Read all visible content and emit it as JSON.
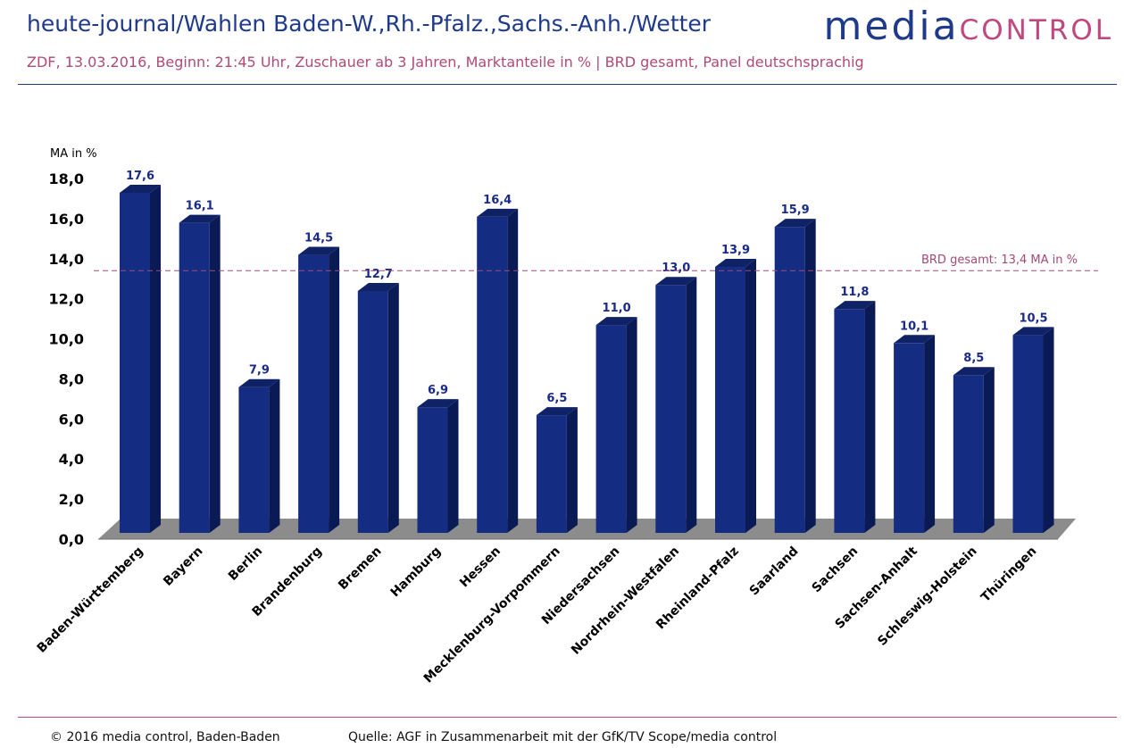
{
  "header": {
    "title": "heute-journal/Wahlen Baden-W.,Rh.-Pfalz.,Sachs.-Anh./Wetter",
    "subtitle": "ZDF, 13.03.2016, Beginn: 21:45 Uhr, Zuschauer ab 3 Jahren,  Marktanteile in % | BRD gesamt, Panel deutschsprachig",
    "logo_part1": "media",
    "logo_part2": "control"
  },
  "footer": {
    "copyright": "© 2016 media control, Baden-Baden",
    "source": "Quelle: AGF in Zusammenarbeit mit der GfK/TV Scope/media control"
  },
  "colors": {
    "bar_front": "#142d82",
    "bar_side": "#0a1a55",
    "bar_top": "#0f2266",
    "floor": "#8c8c8c",
    "reference_line": "#a04a78",
    "value_label": "#1a2a8a"
  },
  "chart_data": {
    "type": "bar",
    "ylabel": "MA in %",
    "ylim": [
      0,
      18
    ],
    "yticks": [
      "0,0",
      "2,0",
      "4,0",
      "6,0",
      "8,0",
      "10,0",
      "12,0",
      "14,0",
      "16,0",
      "18,0"
    ],
    "categories": [
      "Baden-Württemberg",
      "Bayern",
      "Berlin",
      "Brandenburg",
      "Bremen",
      "Hamburg",
      "Hessen",
      "Mecklenburg-Vorpommern",
      "Niedersachsen",
      "Nordrhein-Westfalen",
      "Rheinland-Pfalz",
      "Saarland",
      "Sachsen",
      "Sachsen-Anhalt",
      "Schleswig-Holstein",
      "Thüringen"
    ],
    "values": [
      17.6,
      16.1,
      7.9,
      14.5,
      12.7,
      6.9,
      16.4,
      6.5,
      11.0,
      13.0,
      13.9,
      15.9,
      11.8,
      10.1,
      8.5,
      10.5
    ],
    "value_labels": [
      "17,6",
      "16,1",
      "7,9",
      "14,5",
      "12,7",
      "6,9",
      "16,4",
      "6,5",
      "11,0",
      "13,0",
      "13,9",
      "15,9",
      "11,8",
      "10,1",
      "8,5",
      "10,5"
    ],
    "reference": {
      "value": 13.4,
      "label": "BRD gesamt:  13,4 MA in %"
    },
    "grid": false,
    "legend": "none"
  }
}
